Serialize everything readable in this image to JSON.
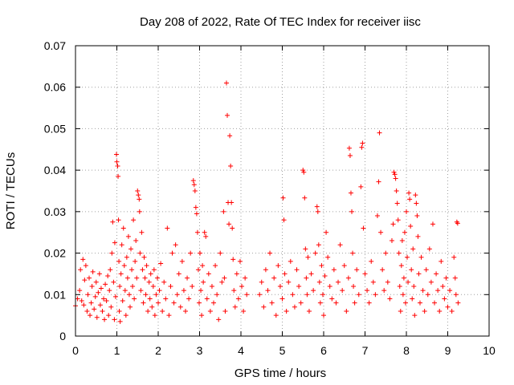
{
  "chart_data": {
    "type": "scatter",
    "title": "Day 208 of 2022, Rate Of TEC Index for receiver iisc",
    "xlabel": "GPS time / hours",
    "ylabel": "ROTI / TECUs",
    "xlim": [
      0,
      10
    ],
    "ylim": [
      0,
      0.07
    ],
    "xticks": [
      "0",
      "1",
      "2",
      "3",
      "4",
      "5",
      "6",
      "7",
      "8",
      "9",
      "10"
    ],
    "yticks": [
      "0",
      "0.01",
      "0.02",
      "0.03",
      "0.04",
      "0.05",
      "0.06",
      "0.07"
    ],
    "grid": true,
    "marker": "plus",
    "color": "#ff0000",
    "series": [
      {
        "name": "ROTI",
        "points": [
          [
            0.0,
            0.0073
          ],
          [
            0.05,
            0.009
          ],
          [
            0.1,
            0.011
          ],
          [
            0.12,
            0.016
          ],
          [
            0.15,
            0.0085
          ],
          [
            0.18,
            0.0185
          ],
          [
            0.2,
            0.0075
          ],
          [
            0.22,
            0.0135
          ],
          [
            0.25,
            0.017
          ],
          [
            0.28,
            0.006
          ],
          [
            0.3,
            0.01
          ],
          [
            0.33,
            0.014
          ],
          [
            0.35,
            0.005
          ],
          [
            0.38,
            0.008
          ],
          [
            0.4,
            0.012
          ],
          [
            0.42,
            0.0155
          ],
          [
            0.45,
            0.0065
          ],
          [
            0.48,
            0.0095
          ],
          [
            0.5,
            0.013
          ],
          [
            0.52,
            0.0045
          ],
          [
            0.55,
            0.0105
          ],
          [
            0.58,
            0.015
          ],
          [
            0.6,
            0.0075
          ],
          [
            0.62,
            0.0115
          ],
          [
            0.65,
            0.006
          ],
          [
            0.68,
            0.009
          ],
          [
            0.7,
            0.004
          ],
          [
            0.72,
            0.0125
          ],
          [
            0.75,
            0.0085
          ],
          [
            0.78,
            0.0145
          ],
          [
            0.8,
            0.005
          ],
          [
            0.82,
            0.011
          ],
          [
            0.84,
            0.016
          ],
          [
            0.86,
            0.007
          ],
          [
            0.88,
            0.02
          ],
          [
            0.9,
            0.0275
          ],
          [
            0.92,
            0.013
          ],
          [
            0.94,
            0.004
          ],
          [
            0.95,
            0.0225
          ],
          [
            0.97,
            0.0095
          ],
          [
            0.99,
            0.0438
          ],
          [
            1.0,
            0.042
          ],
          [
            1.02,
            0.041
          ],
          [
            1.03,
            0.0385
          ],
          [
            1.04,
            0.028
          ],
          [
            1.05,
            0.018
          ],
          [
            1.06,
            0.006
          ],
          [
            1.07,
            0.012
          ],
          [
            1.08,
            0.0035
          ],
          [
            1.1,
            0.015
          ],
          [
            1.12,
            0.022
          ],
          [
            1.14,
            0.0085
          ],
          [
            1.16,
            0.026
          ],
          [
            1.18,
            0.017
          ],
          [
            1.2,
            0.011
          ],
          [
            1.22,
            0.005
          ],
          [
            1.24,
            0.019
          ],
          [
            1.26,
            0.014
          ],
          [
            1.28,
            0.024
          ],
          [
            1.3,
            0.01
          ],
          [
            1.32,
            0.007
          ],
          [
            1.34,
            0.021
          ],
          [
            1.36,
            0.016
          ],
          [
            1.38,
            0.012
          ],
          [
            1.4,
            0.028
          ],
          [
            1.42,
            0.009
          ],
          [
            1.44,
            0.018
          ],
          [
            1.46,
            0.023
          ],
          [
            1.48,
            0.014
          ],
          [
            1.5,
            0.035
          ],
          [
            1.52,
            0.034
          ],
          [
            1.54,
            0.033
          ],
          [
            1.55,
            0.03
          ],
          [
            1.56,
            0.02
          ],
          [
            1.58,
            0.011
          ],
          [
            1.6,
            0.025
          ],
          [
            1.62,
            0.016
          ],
          [
            1.64,
            0.008
          ],
          [
            1.66,
            0.019
          ],
          [
            1.68,
            0.014
          ],
          [
            1.7,
            0.01
          ],
          [
            1.72,
            0.017
          ],
          [
            1.75,
            0.006
          ],
          [
            1.78,
            0.013
          ],
          [
            1.8,
            0.009
          ],
          [
            1.82,
            0.015
          ],
          [
            1.85,
            0.007
          ],
          [
            1.88,
            0.012
          ],
          [
            1.9,
            0.016
          ],
          [
            1.92,
            0.005
          ],
          [
            1.95,
            0.01
          ],
          [
            1.98,
            0.014
          ],
          [
            2.0,
            0.008
          ],
          [
            2.03,
            0.011
          ],
          [
            2.06,
            0.0175
          ],
          [
            2.1,
            0.006
          ],
          [
            2.14,
            0.013
          ],
          [
            2.18,
            0.009
          ],
          [
            2.22,
            0.026
          ],
          [
            2.26,
            0.005
          ],
          [
            2.3,
            0.012
          ],
          [
            2.34,
            0.02
          ],
          [
            2.38,
            0.008
          ],
          [
            2.42,
            0.022
          ],
          [
            2.46,
            0.01
          ],
          [
            2.5,
            0.015
          ],
          [
            2.54,
            0.007
          ],
          [
            2.58,
            0.018
          ],
          [
            2.62,
            0.011
          ],
          [
            2.66,
            0.006
          ],
          [
            2.7,
            0.014
          ],
          [
            2.74,
            0.009
          ],
          [
            2.78,
            0.02
          ],
          [
            2.82,
            0.012
          ],
          [
            2.85,
            0.0375
          ],
          [
            2.87,
            0.0365
          ],
          [
            2.89,
            0.035
          ],
          [
            2.91,
            0.031
          ],
          [
            2.93,
            0.0295
          ],
          [
            2.95,
            0.025
          ],
          [
            2.97,
            0.016
          ],
          [
            2.99,
            0.008
          ],
          [
            3.01,
            0.02
          ],
          [
            3.03,
            0.011
          ],
          [
            3.05,
            0.005
          ],
          [
            3.07,
            0.017
          ],
          [
            3.09,
            0.013
          ],
          [
            3.12,
            0.025
          ],
          [
            3.15,
            0.024
          ],
          [
            3.18,
            0.009
          ],
          [
            3.22,
            0.015
          ],
          [
            3.26,
            0.006
          ],
          [
            3.3,
            0.012
          ],
          [
            3.34,
            0.008
          ],
          [
            3.38,
            0.017
          ],
          [
            3.42,
            0.01
          ],
          [
            3.46,
            0.004
          ],
          [
            3.5,
            0.02
          ],
          [
            3.54,
            0.013
          ],
          [
            3.58,
            0.03
          ],
          [
            3.6,
            0.014
          ],
          [
            3.62,
            0.006
          ],
          [
            3.65,
            0.061
          ],
          [
            3.67,
            0.0532
          ],
          [
            3.69,
            0.0322
          ],
          [
            3.71,
            0.027
          ],
          [
            3.73,
            0.0483
          ],
          [
            3.75,
            0.041
          ],
          [
            3.77,
            0.0322
          ],
          [
            3.79,
            0.026
          ],
          [
            3.81,
            0.0185
          ],
          [
            3.83,
            0.011
          ],
          [
            3.86,
            0.007
          ],
          [
            3.9,
            0.015
          ],
          [
            3.94,
            0.009
          ],
          [
            3.98,
            0.018
          ],
          [
            4.02,
            0.012
          ],
          [
            4.06,
            0.006
          ],
          [
            4.1,
            0.014
          ],
          [
            4.14,
            0.01
          ],
          [
            4.45,
            0.01
          ],
          [
            4.5,
            0.013
          ],
          [
            4.55,
            0.007
          ],
          [
            4.6,
            0.016
          ],
          [
            4.65,
            0.011
          ],
          [
            4.7,
            0.02
          ],
          [
            4.75,
            0.008
          ],
          [
            4.8,
            0.014
          ],
          [
            4.85,
            0.005
          ],
          [
            4.9,
            0.017
          ],
          [
            4.95,
            0.012
          ],
          [
            5.0,
            0.009
          ],
          [
            5.02,
            0.0333
          ],
          [
            5.04,
            0.028
          ],
          [
            5.06,
            0.015
          ],
          [
            5.1,
            0.006
          ],
          [
            5.15,
            0.013
          ],
          [
            5.2,
            0.018
          ],
          [
            5.25,
            0.01
          ],
          [
            5.3,
            0.007
          ],
          [
            5.35,
            0.016
          ],
          [
            5.4,
            0.012
          ],
          [
            5.45,
            0.008
          ],
          [
            5.5,
            0.04
          ],
          [
            5.52,
            0.0395
          ],
          [
            5.54,
            0.0333
          ],
          [
            5.56,
            0.021
          ],
          [
            5.58,
            0.014
          ],
          [
            5.6,
            0.01
          ],
          [
            5.62,
            0.019
          ],
          [
            5.65,
            0.006
          ],
          [
            5.7,
            0.015
          ],
          [
            5.75,
            0.011
          ],
          [
            5.8,
            0.02
          ],
          [
            5.84,
            0.0312
          ],
          [
            5.86,
            0.03
          ],
          [
            5.88,
            0.022
          ],
          [
            5.9,
            0.013
          ],
          [
            5.92,
            0.008
          ],
          [
            5.95,
            0.017
          ],
          [
            5.98,
            0.01
          ],
          [
            6.0,
            0.005
          ],
          [
            6.03,
            0.0145
          ],
          [
            6.06,
            0.025
          ],
          [
            6.1,
            0.019
          ],
          [
            6.15,
            0.012
          ],
          [
            6.2,
            0.009
          ],
          [
            6.25,
            0.016
          ],
          [
            6.3,
            0.008
          ],
          [
            6.35,
            0.013
          ],
          [
            6.4,
            0.022
          ],
          [
            6.45,
            0.011
          ],
          [
            6.5,
            0.017
          ],
          [
            6.55,
            0.006
          ],
          [
            6.6,
            0.014
          ],
          [
            6.62,
            0.0453
          ],
          [
            6.64,
            0.0435
          ],
          [
            6.66,
            0.0345
          ],
          [
            6.68,
            0.03
          ],
          [
            6.7,
            0.02
          ],
          [
            6.72,
            0.012
          ],
          [
            6.75,
            0.008
          ],
          [
            6.8,
            0.016
          ],
          [
            6.85,
            0.01
          ],
          [
            6.9,
            0.036
          ],
          [
            6.92,
            0.0455
          ],
          [
            6.94,
            0.0465
          ],
          [
            6.96,
            0.026
          ],
          [
            7.0,
            0.015
          ],
          [
            7.05,
            0.011
          ],
          [
            7.1,
            0.008
          ],
          [
            7.15,
            0.018
          ],
          [
            7.2,
            0.013
          ],
          [
            7.25,
            0.01
          ],
          [
            7.3,
            0.029
          ],
          [
            7.33,
            0.0372
          ],
          [
            7.35,
            0.049
          ],
          [
            7.38,
            0.025
          ],
          [
            7.42,
            0.016
          ],
          [
            7.46,
            0.011
          ],
          [
            7.5,
            0.02
          ],
          [
            7.55,
            0.013
          ],
          [
            7.6,
            0.009
          ],
          [
            7.65,
            0.023
          ],
          [
            7.68,
            0.027
          ],
          [
            7.7,
            0.0395
          ],
          [
            7.72,
            0.039
          ],
          [
            7.74,
            0.038
          ],
          [
            7.76,
            0.035
          ],
          [
            7.78,
            0.032
          ],
          [
            7.8,
            0.028
          ],
          [
            7.82,
            0.02
          ],
          [
            7.84,
            0.012
          ],
          [
            7.86,
            0.006
          ],
          [
            7.88,
            0.017
          ],
          [
            7.9,
            0.023
          ],
          [
            7.92,
            0.01
          ],
          [
            7.94,
            0.014
          ],
          [
            7.96,
            0.025
          ],
          [
            7.98,
            0.008
          ],
          [
            8.0,
            0.03
          ],
          [
            8.02,
            0.019
          ],
          [
            8.04,
            0.013
          ],
          [
            8.06,
            0.0345
          ],
          [
            8.08,
            0.033
          ],
          [
            8.1,
            0.0265
          ],
          [
            8.12,
            0.016
          ],
          [
            8.14,
            0.009
          ],
          [
            8.16,
            0.021
          ],
          [
            8.18,
            0.012
          ],
          [
            8.2,
            0.005
          ],
          [
            8.22,
            0.034
          ],
          [
            8.24,
            0.032
          ],
          [
            8.26,
            0.029
          ],
          [
            8.28,
            0.024
          ],
          [
            8.3,
            0.015
          ],
          [
            8.33,
            0.008
          ],
          [
            8.36,
            0.019
          ],
          [
            8.4,
            0.011
          ],
          [
            8.44,
            0.006
          ],
          [
            8.48,
            0.016
          ],
          [
            8.52,
            0.01
          ],
          [
            8.56,
            0.021
          ],
          [
            8.6,
            0.013
          ],
          [
            8.64,
            0.027
          ],
          [
            8.68,
            0.008
          ],
          [
            8.72,
            0.015
          ],
          [
            8.76,
            0.011
          ],
          [
            8.8,
            0.006
          ],
          [
            8.84,
            0.018
          ],
          [
            8.88,
            0.012
          ],
          [
            8.92,
            0.009
          ],
          [
            8.96,
            0.014
          ],
          [
            9.0,
            0.007
          ],
          [
            9.05,
            0.011
          ],
          [
            9.1,
            0.006
          ],
          [
            9.15,
            0.019
          ],
          [
            9.18,
            0.014
          ],
          [
            9.2,
            0.01
          ],
          [
            9.22,
            0.0275
          ],
          [
            9.24,
            0.0272
          ],
          [
            9.25,
            0.008
          ]
        ]
      }
    ]
  }
}
